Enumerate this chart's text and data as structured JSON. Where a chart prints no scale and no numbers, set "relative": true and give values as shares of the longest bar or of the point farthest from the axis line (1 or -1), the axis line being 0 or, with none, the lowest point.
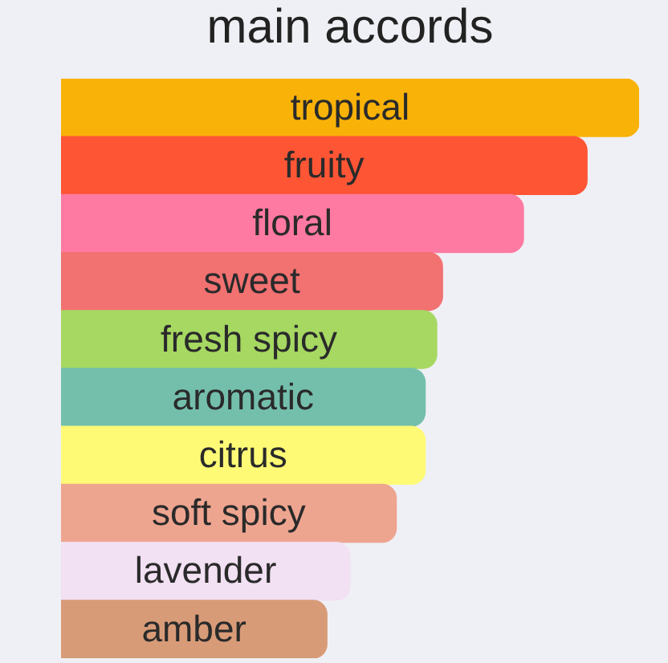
{
  "chart_data": {
    "type": "bar",
    "title": "main accords",
    "orientation": "horizontal",
    "relative": true,
    "categories": [
      "tropical",
      "fruity",
      "floral",
      "sweet",
      "fresh spicy",
      "aromatic",
      "citrus",
      "soft spicy",
      "lavender",
      "amber"
    ],
    "values": [
      1,
      0.91,
      0.8,
      0.66,
      0.65,
      0.63,
      0.63,
      0.58,
      0.5,
      0.46
    ],
    "colors": [
      "#f9b208",
      "#fe5535",
      "#fe7aa2",
      "#f27171",
      "#a6d862",
      "#74bfac",
      "#fefa76",
      "#eea590",
      "#f2e0f3",
      "#d89b78"
    ]
  }
}
